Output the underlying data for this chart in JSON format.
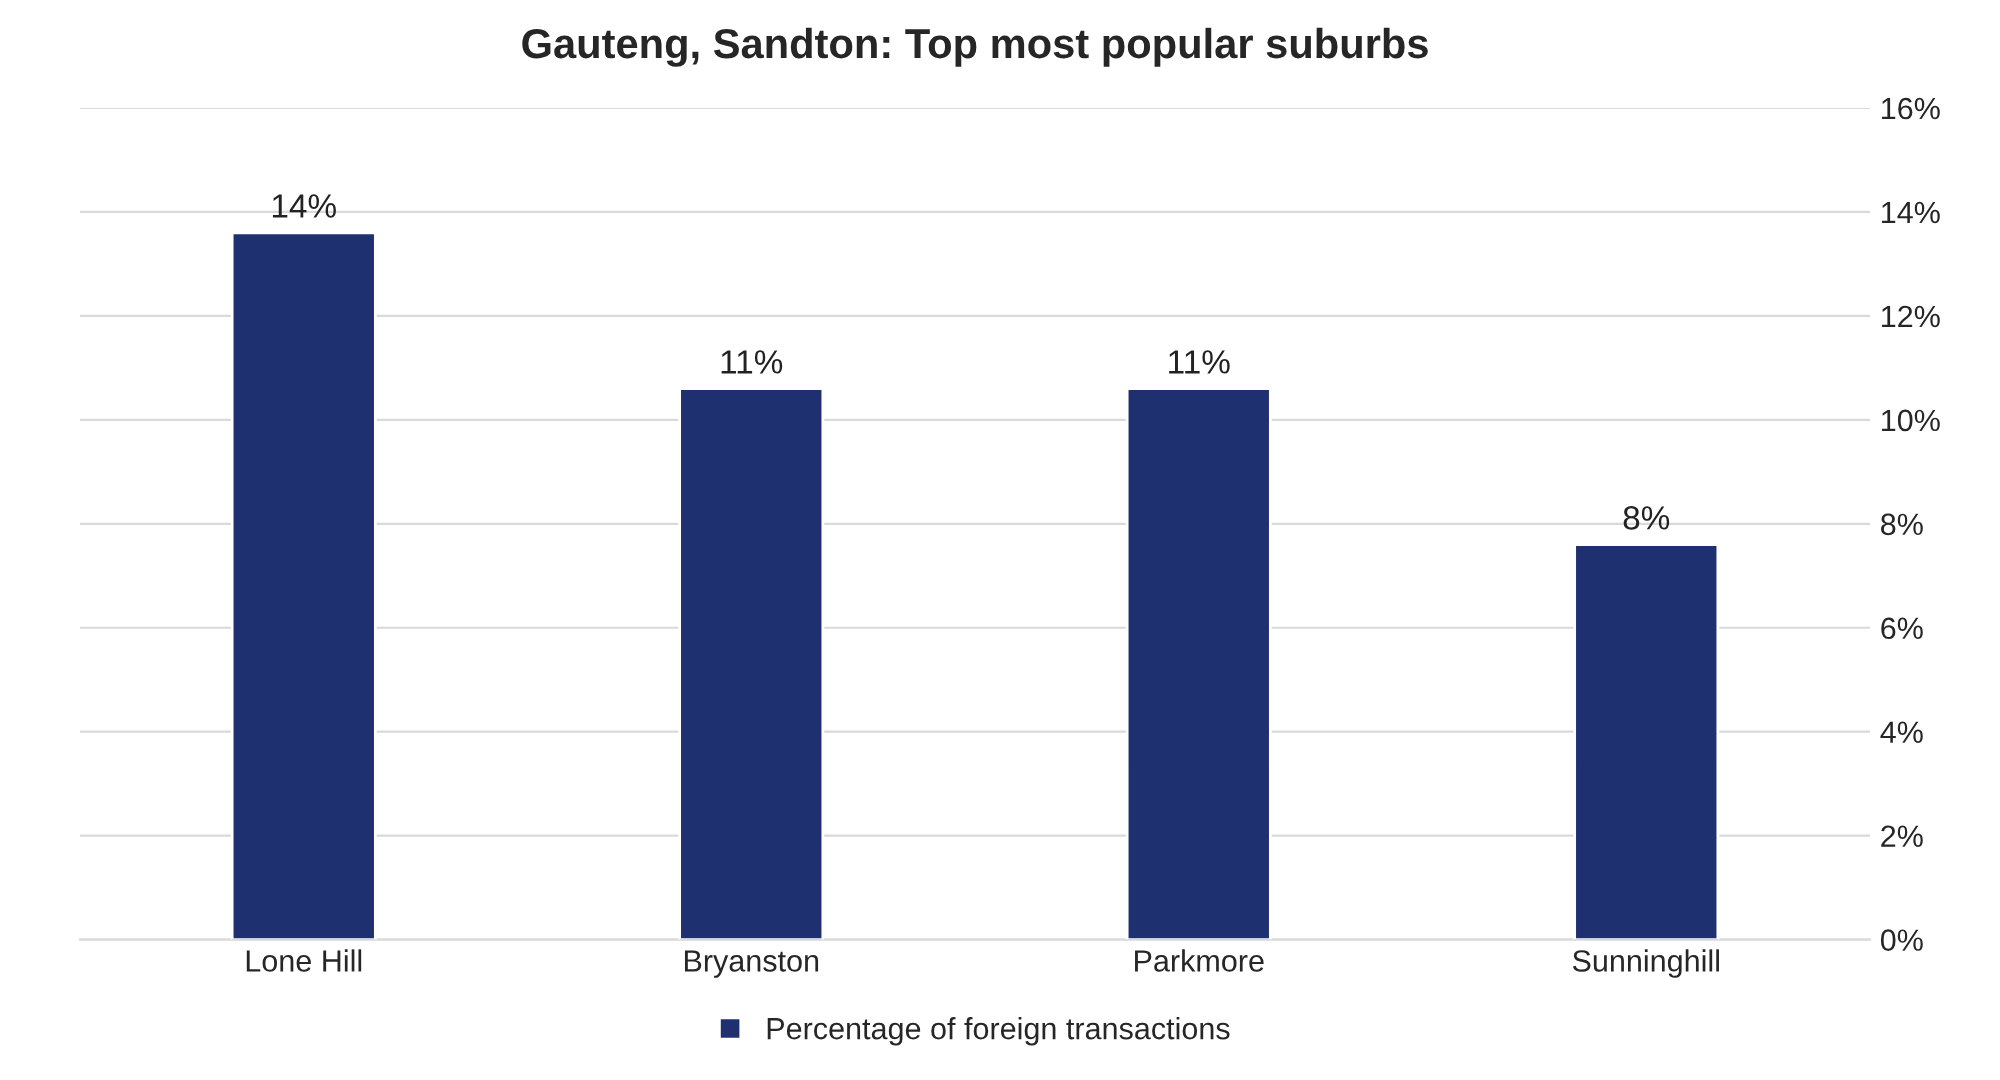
{
  "chart_data": {
    "type": "bar",
    "title": "Gauteng, Sandton: Top most popular suburbs",
    "categories": [
      "Lone Hill",
      "Bryanston",
      "Parkmore",
      "Sunninghill"
    ],
    "series": [
      {
        "name": "Percentage of foreign transactions",
        "color": "#1f3070",
        "values": [
          13.6,
          10.6,
          10.6,
          7.6
        ],
        "value_labels": [
          "14%",
          "11%",
          "11%",
          "8%"
        ]
      }
    ],
    "ylim": [
      0,
      16
    ],
    "yticks": [
      {
        "value": 0,
        "label": "0%"
      },
      {
        "value": 2,
        "label": "2%"
      },
      {
        "value": 4,
        "label": "4%"
      },
      {
        "value": 6,
        "label": "6%"
      },
      {
        "value": 8,
        "label": "8%"
      },
      {
        "value": 10,
        "label": "10%"
      },
      {
        "value": 12,
        "label": "12%"
      },
      {
        "value": 14,
        "label": "14%"
      },
      {
        "value": 16,
        "label": "16%"
      }
    ],
    "grid": "y",
    "legend": "bottom"
  }
}
